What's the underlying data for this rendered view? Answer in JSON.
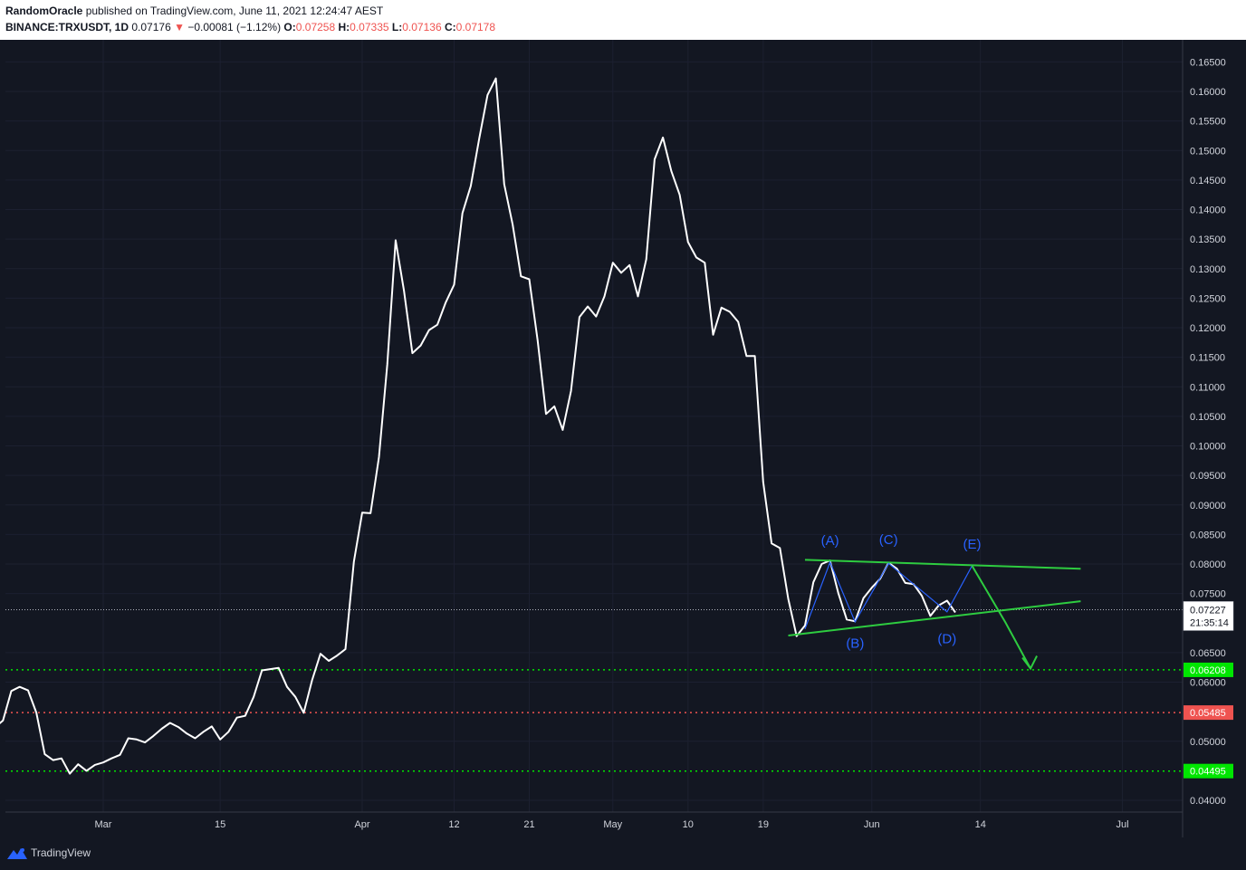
{
  "header": {
    "author": "RandomOracle",
    "published_text": "published on TradingView.com, June 11, 2021 12:24:47 AEST",
    "symbol": "BINANCE:TRXUSDT, 1D",
    "last_price": "0.07176",
    "change_arrow": "▼",
    "change": "−0.00081 (−1.12%)",
    "o_label": "O:",
    "o_value": "0.07258",
    "h_label": "H:",
    "h_value": "0.07335",
    "l_label": "L:",
    "l_value": "0.07136",
    "c_label": "C:",
    "c_value": "0.07178"
  },
  "price_axis": {
    "ticks": [
      "0.16500",
      "0.16000",
      "0.15500",
      "0.15000",
      "0.14500",
      "0.14000",
      "0.13500",
      "0.13000",
      "0.12500",
      "0.12000",
      "0.11500",
      "0.11000",
      "0.10500",
      "0.10000",
      "0.09500",
      "0.09000",
      "0.08500",
      "0.08000",
      "0.07500",
      "0.06500",
      "0.06000",
      "0.05000",
      "0.04000"
    ],
    "tick_values": [
      0.165,
      0.16,
      0.155,
      0.15,
      0.145,
      0.14,
      0.135,
      0.13,
      0.125,
      0.12,
      0.115,
      0.11,
      0.105,
      0.1,
      0.095,
      0.09,
      0.085,
      0.08,
      0.075,
      0.065,
      0.06,
      0.05,
      0.04
    ],
    "current_price": "0.07227",
    "current_price_value": 0.07227,
    "countdown": "21:35:14"
  },
  "time_axis": {
    "labels": [
      "Mar",
      "15",
      "Apr",
      "12",
      "21",
      "May",
      "10",
      "19",
      "Jun",
      "14",
      "Jul"
    ],
    "label_days": [
      0,
      14,
      31,
      42,
      51,
      61,
      70,
      79,
      92,
      105,
      122
    ]
  },
  "levels": [
    {
      "value": 0.06208,
      "label": "0.06208",
      "color": "#00e600"
    },
    {
      "value": 0.05485,
      "label": "0.05485",
      "color": "#ef5350"
    },
    {
      "value": 0.04495,
      "label": "0.04495",
      "color": "#00e600"
    }
  ],
  "wave_labels": [
    "(A)",
    "(B)",
    "(C)",
    "(D)",
    "(E)"
  ],
  "colors": {
    "background": "#131722",
    "price_line": "#ffffff",
    "trendline": "#2ecc40",
    "wave": "#2962ff",
    "support_green": "#00e600",
    "support_red": "#ef5350"
  },
  "footer": {
    "brand": "TradingView"
  },
  "chart_data": {
    "type": "line",
    "title": "BINANCE:TRXUSDT, 1D",
    "xlabel": "",
    "ylabel": "",
    "ylim": [
      0.037,
      0.1695
    ],
    "x_unit": "days from Mar 1, 2021",
    "series": [
      {
        "values": [
          [
            -13,
            0.0523
          ],
          [
            -12,
            0.0535
          ],
          [
            -11,
            0.0585
          ],
          [
            -10,
            0.0592
          ],
          [
            -9,
            0.0586
          ],
          [
            -8,
            0.0548
          ],
          [
            -7,
            0.0478
          ],
          [
            -6,
            0.0468
          ],
          [
            -5,
            0.0471
          ],
          [
            -4,
            0.0445
          ],
          [
            -3,
            0.0461
          ],
          [
            -2,
            0.045
          ],
          [
            -1,
            0.046
          ],
          [
            0,
            0.0464
          ],
          [
            1,
            0.0471
          ],
          [
            2,
            0.0477
          ],
          [
            3,
            0.0505
          ],
          [
            4,
            0.0503
          ],
          [
            5,
            0.0498
          ],
          [
            6,
            0.0509
          ],
          [
            7,
            0.0521
          ],
          [
            8,
            0.0531
          ],
          [
            9,
            0.0524
          ],
          [
            10,
            0.0513
          ],
          [
            11,
            0.0505
          ],
          [
            12,
            0.0516
          ],
          [
            13,
            0.0525
          ],
          [
            14,
            0.0503
          ],
          [
            15,
            0.0516
          ],
          [
            16,
            0.054
          ],
          [
            17,
            0.0543
          ],
          [
            18,
            0.0575
          ],
          [
            19,
            0.062
          ],
          [
            20,
            0.0622
          ],
          [
            21,
            0.0624
          ],
          [
            22,
            0.0592
          ],
          [
            23,
            0.0575
          ],
          [
            24,
            0.0548
          ],
          [
            25,
            0.0603
          ],
          [
            26,
            0.0648
          ],
          [
            27,
            0.0636
          ],
          [
            28,
            0.0645
          ],
          [
            29,
            0.0656
          ],
          [
            30,
            0.0804
          ],
          [
            31,
            0.0887
          ],
          [
            32,
            0.0886
          ],
          [
            33,
            0.0981
          ],
          [
            34,
            0.1138
          ],
          [
            35,
            0.1348
          ],
          [
            36,
            0.1263
          ],
          [
            37,
            0.1157
          ],
          [
            38,
            0.117
          ],
          [
            39,
            0.1196
          ],
          [
            40,
            0.1205
          ],
          [
            41,
            0.1243
          ],
          [
            42,
            0.1273
          ],
          [
            43,
            0.1394
          ],
          [
            44,
            0.144
          ],
          [
            45,
            0.152
          ],
          [
            46,
            0.1594
          ],
          [
            47,
            0.1622
          ],
          [
            48,
            0.1443
          ],
          [
            49,
            0.1375
          ],
          [
            50,
            0.1287
          ],
          [
            51,
            0.1282
          ],
          [
            52,
            0.1179
          ],
          [
            53,
            0.1054
          ],
          [
            54,
            0.1067
          ],
          [
            55,
            0.1027
          ],
          [
            56,
            0.1093
          ],
          [
            57,
            0.1218
          ],
          [
            58,
            0.1236
          ],
          [
            59,
            0.1219
          ],
          [
            60,
            0.1253
          ],
          [
            61,
            0.131
          ],
          [
            62,
            0.1293
          ],
          [
            63,
            0.1306
          ],
          [
            64,
            0.1253
          ],
          [
            65,
            0.1316
          ],
          [
            66,
            0.1485
          ],
          [
            67,
            0.1522
          ],
          [
            68,
            0.1465
          ],
          [
            69,
            0.1425
          ],
          [
            70,
            0.1345
          ],
          [
            71,
            0.1319
          ],
          [
            72,
            0.131
          ],
          [
            73,
            0.1188
          ],
          [
            74,
            0.1234
          ],
          [
            75,
            0.1227
          ],
          [
            76,
            0.121
          ],
          [
            77,
            0.1152
          ],
          [
            78,
            0.1152
          ],
          [
            79,
            0.0939
          ],
          [
            80,
            0.0835
          ],
          [
            81,
            0.0827
          ],
          [
            82,
            0.0741
          ],
          [
            83,
            0.0678
          ],
          [
            84,
            0.0696
          ],
          [
            85,
            0.0769
          ],
          [
            86,
            0.08
          ],
          [
            87,
            0.0806
          ],
          [
            88,
            0.075
          ],
          [
            89,
            0.0706
          ],
          [
            90,
            0.0703
          ],
          [
            91,
            0.0742
          ],
          [
            92,
            0.076
          ],
          [
            93,
            0.0775
          ],
          [
            94,
            0.0802
          ],
          [
            95,
            0.0792
          ],
          [
            96,
            0.0768
          ],
          [
            97,
            0.0766
          ],
          [
            98,
            0.0746
          ],
          [
            99,
            0.0712
          ],
          [
            100,
            0.073
          ],
          [
            101,
            0.0738
          ],
          [
            102,
            0.0718
          ]
        ]
      }
    ],
    "annotations": {
      "triangle_upper": [
        [
          84,
          0.0807
        ],
        [
          117,
          0.0792
        ]
      ],
      "triangle_lower": [
        [
          82,
          0.0679
        ],
        [
          117,
          0.0737
        ]
      ],
      "wave_path": [
        [
          84,
          0.069
        ],
        [
          87,
          0.0803
        ],
        [
          90,
          0.0702
        ],
        [
          94,
          0.0801
        ],
        [
          101,
          0.0719
        ],
        [
          104,
          0.0797
        ]
      ],
      "forecast_arrow": [
        [
          104,
          0.0797
        ],
        [
          108,
          0.0701
        ],
        [
          111,
          0.0623
        ]
      ],
      "wave_points": [
        {
          "label": "(A)",
          "x": 87,
          "y": 0.0832
        },
        {
          "label": "(B)",
          "x": 90,
          "y": 0.0658
        },
        {
          "label": "(C)",
          "x": 94,
          "y": 0.0834
        },
        {
          "label": "(D)",
          "x": 101,
          "y": 0.0666
        },
        {
          "label": "(E)",
          "x": 104,
          "y": 0.0826
        }
      ]
    }
  }
}
